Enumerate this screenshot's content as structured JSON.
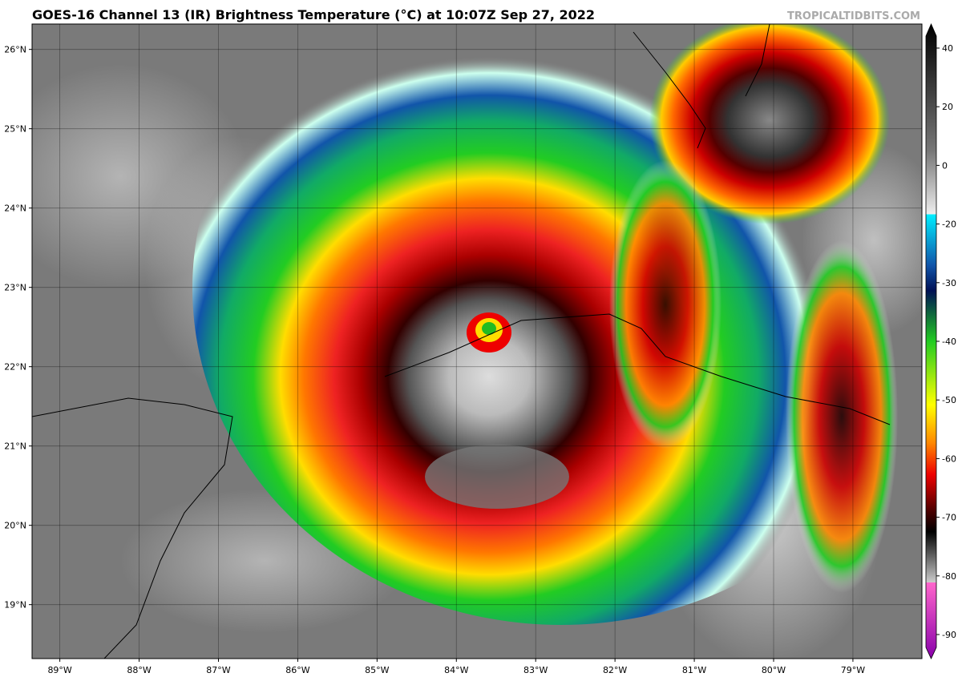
{
  "header": {
    "title": "GOES-16 Channel 13 (IR) Brightness Temperature (°C) at 10:07Z Sep 27, 2022",
    "watermark": "TROPICALTIDBITS.COM"
  },
  "map": {
    "lonlim": [
      -89.35,
      -78.13
    ],
    "latlim": [
      18.32,
      26.32
    ],
    "lonticks": [
      {
        "value": -89,
        "label": "89°W"
      },
      {
        "value": -88,
        "label": "88°W"
      },
      {
        "value": -87,
        "label": "87°W"
      },
      {
        "value": -86,
        "label": "86°W"
      },
      {
        "value": -85,
        "label": "85°W"
      },
      {
        "value": -84,
        "label": "84°W"
      },
      {
        "value": -83,
        "label": "83°W"
      },
      {
        "value": -82,
        "label": "82°W"
      },
      {
        "value": -81,
        "label": "81°W"
      },
      {
        "value": -80,
        "label": "80°W"
      },
      {
        "value": -79,
        "label": "79°W"
      }
    ],
    "latticks": [
      {
        "value": 26,
        "label": "26°N"
      },
      {
        "value": 25,
        "label": "25°N"
      },
      {
        "value": 24,
        "label": "24°N"
      },
      {
        "value": 23,
        "label": "23°N"
      },
      {
        "value": 22,
        "label": "22°N"
      },
      {
        "value": 21,
        "label": "21°N"
      },
      {
        "value": 20,
        "label": "20°N"
      },
      {
        "value": 19,
        "label": "19°N"
      }
    ],
    "grid": true
  },
  "colorbar": {
    "ticks": [
      40,
      20,
      0,
      -20,
      -30,
      -40,
      -50,
      -60,
      -70,
      -80,
      -90
    ]
  }
}
